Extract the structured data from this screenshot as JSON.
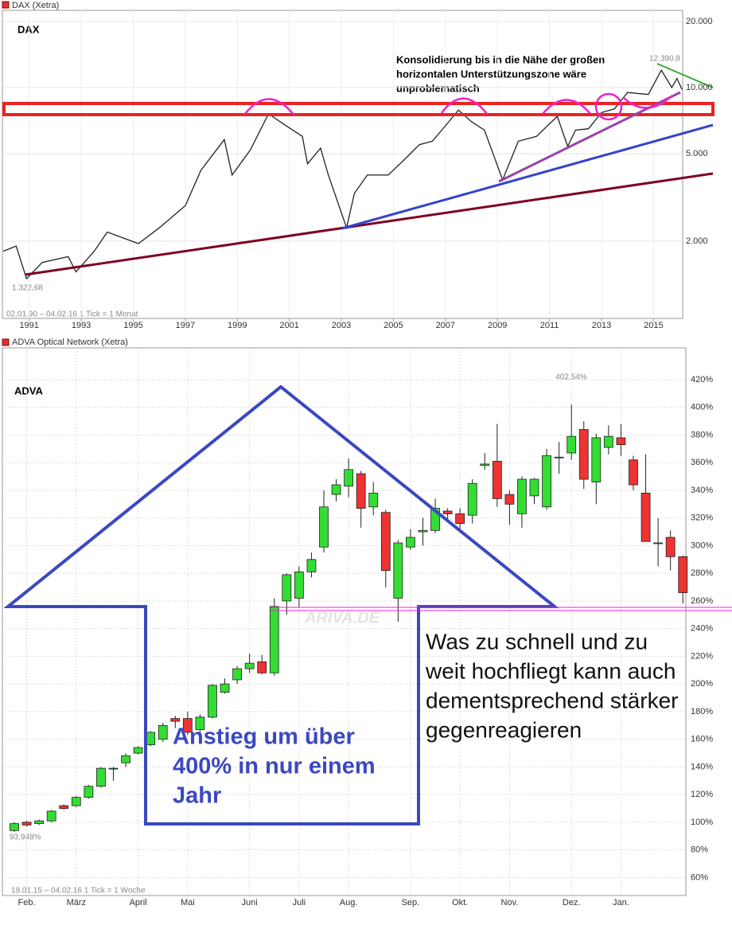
{
  "chart_data": [
    {
      "type": "line",
      "title": "DAX (Xetra)",
      "label": "DAX",
      "annotation": [
        "Konsolidierung bis in die Nähe der großen",
        "horizontalen Unterstützungszone wäre",
        "unproblematisch"
      ],
      "high_label": "12.390,8",
      "low_label": "1.322,68",
      "range_note": "02.01.90 – 04.02.16   1 Tick = 1 Monat",
      "log_scale": true,
      "grid": true,
      "color": "#222222",
      "x": [
        1990.0,
        1990.5,
        1990.9,
        1991.5,
        1992.5,
        1992.8,
        1993.5,
        1994.0,
        1995.2,
        1996.0,
        1997.0,
        1997.6,
        1998.5,
        1998.8,
        1999.5,
        2000.2,
        2000.8,
        2001.5,
        2001.7,
        2002.2,
        2002.5,
        2003.2,
        2003.5,
        2004.0,
        2004.8,
        2005.5,
        2006.0,
        2006.5,
        2007.0,
        2007.5,
        2008.0,
        2008.5,
        2009.2,
        2009.8,
        2010.5,
        2011.3,
        2011.7,
        2012.0,
        2012.5,
        2013.0,
        2013.5,
        2014.0,
        2014.8,
        2015.3,
        2015.7,
        2015.9,
        2016.1
      ],
      "series": [
        {
          "name": "DAX",
          "color": "#222222",
          "values": [
            1800,
            1900,
            1350,
            1600,
            1700,
            1450,
            1800,
            2200,
            1950,
            2300,
            2900,
            4200,
            5800,
            4000,
            5200,
            7600,
            6800,
            6000,
            4500,
            5300,
            4000,
            2300,
            3300,
            4000,
            4000,
            4800,
            5500,
            5700,
            6700,
            7900,
            7000,
            6400,
            3800,
            5700,
            6000,
            7400,
            5400,
            6400,
            6500,
            7700,
            8000,
            9500,
            9300,
            12000,
            10000,
            11000,
            9800
          ]
        }
      ],
      "xlim": [
        1990,
        2016.12
      ],
      "xticks": [
        1991,
        1993,
        1995,
        1997,
        1999,
        2001,
        2003,
        2005,
        2007,
        2009,
        2011,
        2013,
        2015
      ],
      "ylim": [
        890,
        22100
      ],
      "yticks": [
        {
          "value": 2000,
          "label": "2.000"
        },
        {
          "value": 5000,
          "label": "5.000"
        },
        {
          "value": 10000,
          "label": "10.000"
        },
        {
          "value": 20000,
          "label": "20.000"
        }
      ]
    },
    {
      "type": "candlestick",
      "title": "ADVA Optical Network (Xetra)",
      "label": "ADVA",
      "high_label": "402,54%",
      "low_label": "93,948%",
      "range_note": "19.01.15 – 04.02.16   1 Tick = 1 Woche",
      "watermark": "ARIVA.DE",
      "annotation_left": [
        "Anstieg um über",
        "400% in nur einem",
        "Jahr"
      ],
      "annotation_right": [
        "Was zu schnell und zu",
        "weit hochfliegt kann auch",
        "dementsprechend stärker",
        "gegenreagieren"
      ],
      "grid": true,
      "up_color": "#33dd33",
      "down_color": "#ee3333",
      "categories": [
        null,
        "Feb.",
        null,
        null,
        null,
        "März",
        null,
        null,
        null,
        null,
        "April",
        null,
        null,
        null,
        "Mai",
        null,
        null,
        null,
        null,
        "Juni",
        null,
        null,
        null,
        "Juli",
        null,
        null,
        null,
        "Aug.",
        null,
        null,
        null,
        null,
        "Sep.",
        null,
        null,
        null,
        "Okt.",
        null,
        null,
        null,
        "Nov.",
        null,
        null,
        null,
        null,
        "Dez.",
        null,
        null,
        null,
        "Jan.",
        null,
        null,
        null,
        null,
        null
      ],
      "open": [
        94,
        100,
        99,
        101,
        112,
        112,
        118,
        126,
        139,
        143,
        150,
        156,
        160,
        175,
        175,
        167,
        176,
        194,
        203,
        211,
        216,
        208,
        260,
        262,
        281,
        299,
        337,
        343,
        352,
        328,
        324,
        262,
        299,
        310,
        311,
        325,
        323,
        322,
        358,
        361,
        337,
        323,
        336,
        328,
        364,
        367,
        384,
        346,
        371,
        378,
        362,
        338,
        302,
        306,
        292
      ],
      "high": [
        100,
        101,
        102,
        109,
        113,
        119,
        127,
        140,
        140,
        150,
        155,
        166,
        172,
        177,
        180,
        178,
        200,
        204,
        213,
        222,
        221,
        262,
        280,
        285,
        295,
        340,
        348,
        363,
        354,
        346,
        326,
        304,
        312,
        320,
        334,
        327,
        327,
        348,
        367,
        388,
        340,
        350,
        349,
        370,
        375,
        402,
        390,
        381,
        387,
        388,
        365,
        366,
        320,
        311,
        293
      ],
      "low": [
        93,
        97,
        98,
        100,
        109,
        111,
        117,
        125,
        130,
        140,
        149,
        155,
        158,
        168,
        163,
        165,
        175,
        193,
        200,
        208,
        207,
        206,
        250,
        255,
        277,
        295,
        332,
        335,
        313,
        322,
        270,
        245,
        297,
        300,
        309,
        319,
        310,
        316,
        355,
        328,
        315,
        313,
        330,
        326,
        352,
        362,
        341,
        330,
        366,
        365,
        340,
        303,
        285,
        282,
        258
      ],
      "close": [
        99,
        98,
        101,
        108,
        110,
        118,
        126,
        139,
        139,
        148,
        154,
        165,
        170,
        173,
        165,
        176,
        199,
        200,
        211,
        215,
        208,
        256,
        279,
        281,
        290,
        328,
        344,
        355,
        327,
        338,
        282,
        302,
        306,
        311,
        327,
        323,
        316,
        345,
        359,
        334,
        330,
        348,
        348,
        365,
        364,
        379,
        348,
        378,
        379,
        373,
        344,
        303,
        302,
        292,
        266
      ],
      "ylim": [
        47,
        443
      ],
      "yticks": [
        {
          "value": 60,
          "label": "60%"
        },
        {
          "value": 80,
          "label": "80%"
        },
        {
          "value": 100,
          "label": "100%"
        },
        {
          "value": 120,
          "label": "120%"
        },
        {
          "value": 140,
          "label": "140%"
        },
        {
          "value": 160,
          "label": "160%"
        },
        {
          "value": 180,
          "label": "180%"
        },
        {
          "value": 200,
          "label": "200%"
        },
        {
          "value": 220,
          "label": "220%"
        },
        {
          "value": 240,
          "label": "240%"
        },
        {
          "value": 260,
          "label": "260%"
        },
        {
          "value": 280,
          "label": "280%"
        },
        {
          "value": 300,
          "label": "300%"
        },
        {
          "value": 320,
          "label": "320%"
        },
        {
          "value": 340,
          "label": "340%"
        },
        {
          "value": 360,
          "label": "360%"
        },
        {
          "value": 380,
          "label": "380%"
        },
        {
          "value": 400,
          "label": "400%"
        },
        {
          "value": 420,
          "label": "420%"
        }
      ]
    }
  ]
}
